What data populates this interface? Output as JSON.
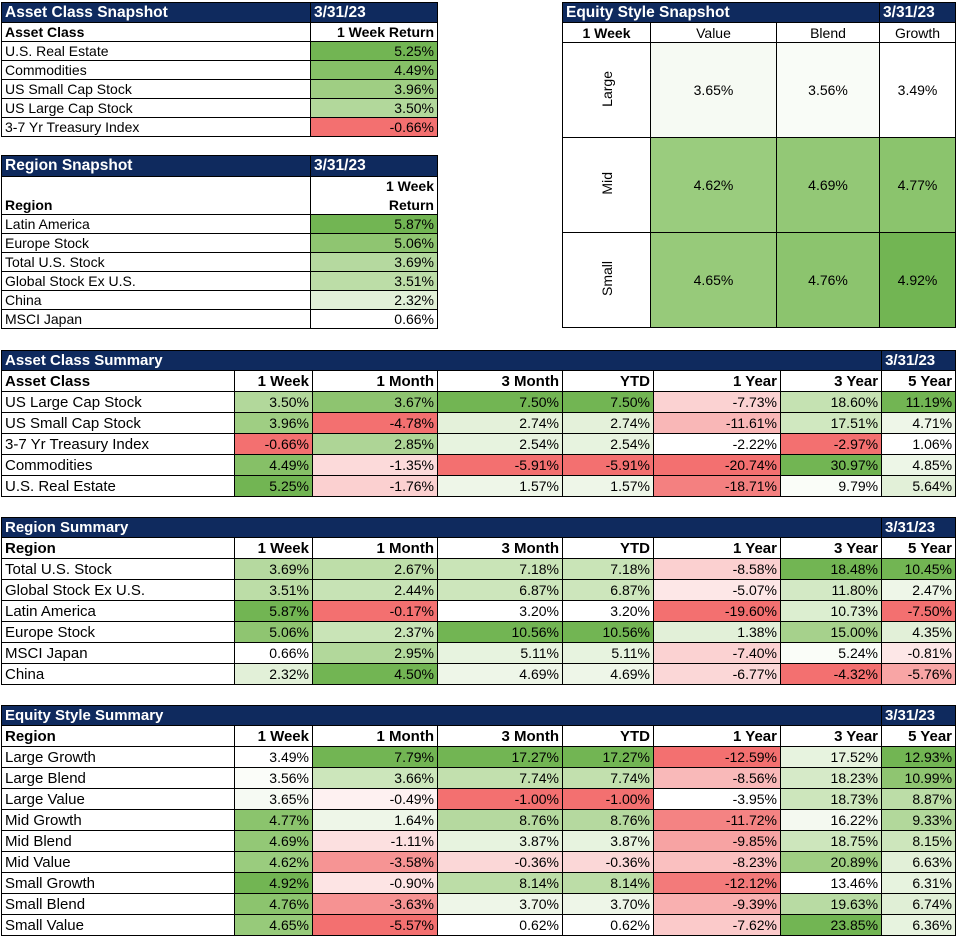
{
  "asset_snapshot": {
    "title": "Asset Class Snapshot",
    "date": "3/31/23",
    "col_label": "Asset Class",
    "col_value": "1 Week Return",
    "rows": [
      {
        "name": "U.S. Real Estate",
        "value": "5.25%",
        "bg": "#72b553"
      },
      {
        "name": "Commodities",
        "value": "4.49%",
        "bg": "#86c067"
      },
      {
        "name": "US Small Cap Stock",
        "value": "3.96%",
        "bg": "#9fce83"
      },
      {
        "name": "US Large Cap Stock",
        "value": "3.50%",
        "bg": "#b2d89b"
      },
      {
        "name": "3-7 Yr Treasury Index",
        "value": "-0.66%",
        "bg": "#f37070"
      }
    ]
  },
  "region_snapshot": {
    "title": "Region Snapshot",
    "date": "3/31/23",
    "col_label": "Region",
    "col_value_1": "1 Week",
    "col_value_2": "Return",
    "rows": [
      {
        "name": "Latin America",
        "value": "5.87%",
        "bg": "#72b553"
      },
      {
        "name": "Europe Stock",
        "value": "5.06%",
        "bg": "#8fc571"
      },
      {
        "name": "Total U.S. Stock",
        "value": "3.69%",
        "bg": "#b5d99f"
      },
      {
        "name": "Global Stock Ex U.S.",
        "value": "3.51%",
        "bg": "#bcdda7"
      },
      {
        "name": "China",
        "value": "2.32%",
        "bg": "#e2f0d8"
      },
      {
        "name": "MSCI Japan",
        "value": "0.66%",
        "bg": "#ffffff"
      }
    ]
  },
  "style_snapshot": {
    "title": "Equity Style Snapshot",
    "date": "3/31/23",
    "corner": "1 Week",
    "cols": [
      "Value",
      "Blend",
      "Growth"
    ],
    "rows": [
      {
        "name": "Large",
        "cells": [
          {
            "v": "3.65%",
            "bg": "#f6faf3"
          },
          {
            "v": "3.56%",
            "bg": "#f9fcf7"
          },
          {
            "v": "3.49%",
            "bg": "#ffffff"
          }
        ]
      },
      {
        "name": "Mid",
        "cells": [
          {
            "v": "4.62%",
            "bg": "#9acc7e"
          },
          {
            "v": "4.69%",
            "bg": "#93c876"
          },
          {
            "v": "4.77%",
            "bg": "#8bc46d"
          }
        ]
      },
      {
        "name": "Small",
        "cells": [
          {
            "v": "4.65%",
            "bg": "#97ca7a"
          },
          {
            "v": "4.76%",
            "bg": "#8cc46e"
          },
          {
            "v": "4.92%",
            "bg": "#72b553"
          }
        ]
      }
    ]
  },
  "asset_summary": {
    "title": "Asset Class Summary",
    "date": "3/31/23",
    "headers": [
      "Asset Class",
      "1 Week",
      "1 Month",
      "3 Month",
      "YTD",
      "1 Year",
      "3 Year",
      "5 Year"
    ],
    "rows": [
      {
        "name": "US Large Cap Stock",
        "cells": [
          {
            "v": "3.50%",
            "bg": "#b2d89b"
          },
          {
            "v": "3.67%",
            "bg": "#8ec470"
          },
          {
            "v": "7.50%",
            "bg": "#72b553"
          },
          {
            "v": "7.50%",
            "bg": "#72b553"
          },
          {
            "v": "-7.73%",
            "bg": "#fbd2d2"
          },
          {
            "v": "18.60%",
            "bg": "#c5e2b2"
          },
          {
            "v": "11.19%",
            "bg": "#72b553"
          }
        ]
      },
      {
        "name": "US Small Cap Stock",
        "cells": [
          {
            "v": "3.96%",
            "bg": "#9fce83"
          },
          {
            "v": "-4.78%",
            "bg": "#f37070"
          },
          {
            "v": "2.74%",
            "bg": "#e4f1da"
          },
          {
            "v": "2.74%",
            "bg": "#e4f1da"
          },
          {
            "v": "-11.61%",
            "bg": "#f9b7b7"
          },
          {
            "v": "17.51%",
            "bg": "#d0e8c0"
          },
          {
            "v": "4.71%",
            "bg": "#eef6e8"
          }
        ]
      },
      {
        "name": "3-7 Yr Treasury Index",
        "cells": [
          {
            "v": "-0.66%",
            "bg": "#f37070"
          },
          {
            "v": "2.85%",
            "bg": "#aed596"
          },
          {
            "v": "2.54%",
            "bg": "#e7f3df"
          },
          {
            "v": "2.54%",
            "bg": "#e7f3df"
          },
          {
            "v": "-2.22%",
            "bg": "#ffffff"
          },
          {
            "v": "-2.97%",
            "bg": "#f37070"
          },
          {
            "v": "1.06%",
            "bg": "#ffffff"
          }
        ]
      },
      {
        "name": "Commodities",
        "cells": [
          {
            "v": "4.49%",
            "bg": "#86c067"
          },
          {
            "v": "-1.35%",
            "bg": "#fcdada"
          },
          {
            "v": "-5.91%",
            "bg": "#f37070"
          },
          {
            "v": "-5.91%",
            "bg": "#f37070"
          },
          {
            "v": "-20.74%",
            "bg": "#f37070"
          },
          {
            "v": "30.97%",
            "bg": "#72b553"
          },
          {
            "v": "4.85%",
            "bg": "#edf6e7"
          }
        ]
      },
      {
        "name": "U.S. Real Estate",
        "cells": [
          {
            "v": "5.25%",
            "bg": "#72b553"
          },
          {
            "v": "-1.76%",
            "bg": "#fbd0d0"
          },
          {
            "v": "1.57%",
            "bg": "#eef6e8"
          },
          {
            "v": "1.57%",
            "bg": "#eef6e8"
          },
          {
            "v": "-18.71%",
            "bg": "#f48080"
          },
          {
            "v": "9.79%",
            "bg": "#fafdf8"
          },
          {
            "v": "5.64%",
            "bg": "#e2f0d8"
          }
        ]
      }
    ]
  },
  "region_summary": {
    "title": "Region Summary",
    "date": "3/31/23",
    "headers": [
      "Region",
      "1 Week",
      "1 Month",
      "3 Month",
      "YTD",
      "1 Year",
      "3 Year",
      "5 Year"
    ],
    "rows": [
      {
        "name": "Total U.S. Stock",
        "cells": [
          {
            "v": "3.69%",
            "bg": "#b5d99f"
          },
          {
            "v": "2.67%",
            "bg": "#bedea9"
          },
          {
            "v": "7.18%",
            "bg": "#c9e4b7"
          },
          {
            "v": "7.18%",
            "bg": "#c9e4b7"
          },
          {
            "v": "-8.58%",
            "bg": "#fbd0d0"
          },
          {
            "v": "18.48%",
            "bg": "#72b553"
          },
          {
            "v": "10.45%",
            "bg": "#72b553"
          }
        ]
      },
      {
        "name": "Global Stock Ex U.S.",
        "cells": [
          {
            "v": "3.51%",
            "bg": "#bcdda7"
          },
          {
            "v": "2.44%",
            "bg": "#c7e3b5"
          },
          {
            "v": "6.87%",
            "bg": "#cde6bc"
          },
          {
            "v": "6.87%",
            "bg": "#cde6bc"
          },
          {
            "v": "-5.07%",
            "bg": "#fde7e7"
          },
          {
            "v": "11.80%",
            "bg": "#d3e9c5"
          },
          {
            "v": "2.47%",
            "bg": "#eef6e8"
          }
        ]
      },
      {
        "name": "Latin America",
        "cells": [
          {
            "v": "5.87%",
            "bg": "#72b553"
          },
          {
            "v": "-0.17%",
            "bg": "#f37070"
          },
          {
            "v": "3.20%",
            "bg": "#ffffff"
          },
          {
            "v": "3.20%",
            "bg": "#ffffff"
          },
          {
            "v": "-19.60%",
            "bg": "#f37070"
          },
          {
            "v": "10.73%",
            "bg": "#dceed0"
          },
          {
            "v": "-7.50%",
            "bg": "#f37070"
          }
        ]
      },
      {
        "name": "Europe Stock",
        "cells": [
          {
            "v": "5.06%",
            "bg": "#8fc571"
          },
          {
            "v": "2.37%",
            "bg": "#c9e4b7"
          },
          {
            "v": "10.56%",
            "bg": "#72b553"
          },
          {
            "v": "10.56%",
            "bg": "#72b553"
          },
          {
            "v": "1.38%",
            "bg": "#e2f0d8"
          },
          {
            "v": "15.00%",
            "bg": "#a6d18c"
          },
          {
            "v": "4.35%",
            "bg": "#e2f0d8"
          }
        ]
      },
      {
        "name": "MSCI Japan",
        "cells": [
          {
            "v": "0.66%",
            "bg": "#ffffff"
          },
          {
            "v": "2.95%",
            "bg": "#b2d89b"
          },
          {
            "v": "5.11%",
            "bg": "#e7f3df"
          },
          {
            "v": "5.11%",
            "bg": "#e7f3df"
          },
          {
            "v": "-7.40%",
            "bg": "#fbd2d2"
          },
          {
            "v": "5.24%",
            "bg": "#fafdf8"
          },
          {
            "v": "-0.81%",
            "bg": "#fde7e7"
          }
        ]
      },
      {
        "name": "China",
        "cells": [
          {
            "v": "2.32%",
            "bg": "#e2f0d8"
          },
          {
            "v": "4.50%",
            "bg": "#72b553"
          },
          {
            "v": "4.69%",
            "bg": "#eef6e8"
          },
          {
            "v": "4.69%",
            "bg": "#eef6e8"
          },
          {
            "v": "-6.77%",
            "bg": "#fbd7d7"
          },
          {
            "v": "-4.32%",
            "bg": "#f37070"
          },
          {
            "v": "-5.76%",
            "bg": "#f8a5a5"
          }
        ]
      }
    ]
  },
  "style_summary": {
    "title": "Equity Style Summary",
    "date": "3/31/23",
    "headers": [
      "Region",
      "1 Week",
      "1 Month",
      "3 Month",
      "YTD",
      "1 Year",
      "3 Year",
      "5 Year"
    ],
    "rows": [
      {
        "name": "Large Growth",
        "cells": [
          {
            "v": "3.49%",
            "bg": "#ffffff"
          },
          {
            "v": "7.79%",
            "bg": "#72b553"
          },
          {
            "v": "17.27%",
            "bg": "#72b553"
          },
          {
            "v": "17.27%",
            "bg": "#72b553"
          },
          {
            "v": "-12.59%",
            "bg": "#f37070"
          },
          {
            "v": "17.52%",
            "bg": "#e7f3df"
          },
          {
            "v": "12.93%",
            "bg": "#72b553"
          }
        ]
      },
      {
        "name": "Large Blend",
        "cells": [
          {
            "v": "3.56%",
            "bg": "#fbfdf9"
          },
          {
            "v": "3.66%",
            "bg": "#cce6bb"
          },
          {
            "v": "7.74%",
            "bg": "#c2e0ae"
          },
          {
            "v": "7.74%",
            "bg": "#c2e0ae"
          },
          {
            "v": "-8.56%",
            "bg": "#f9b9b9"
          },
          {
            "v": "18.23%",
            "bg": "#d6eac8"
          },
          {
            "v": "10.99%",
            "bg": "#8fc571"
          }
        ]
      },
      {
        "name": "Large Value",
        "cells": [
          {
            "v": "3.65%",
            "bg": "#f6faf3"
          },
          {
            "v": "-0.49%",
            "bg": "#fef1f1"
          },
          {
            "v": "-1.00%",
            "bg": "#f37070"
          },
          {
            "v": "-1.00%",
            "bg": "#f37070"
          },
          {
            "v": "-3.95%",
            "bg": "#ffffff"
          },
          {
            "v": "18.73%",
            "bg": "#cde6bc"
          },
          {
            "v": "8.87%",
            "bg": "#bcdda7"
          }
        ]
      },
      {
        "name": "Mid Growth",
        "cells": [
          {
            "v": "4.77%",
            "bg": "#8bc46d"
          },
          {
            "v": "1.64%",
            "bg": "#eef6e8"
          },
          {
            "v": "8.76%",
            "bg": "#b5d99f"
          },
          {
            "v": "8.76%",
            "bg": "#b5d99f"
          },
          {
            "v": "-11.72%",
            "bg": "#f48383"
          },
          {
            "v": "16.22%",
            "bg": "#f4f9f0"
          },
          {
            "v": "9.33%",
            "bg": "#b2d89b"
          }
        ]
      },
      {
        "name": "Mid Blend",
        "cells": [
          {
            "v": "4.69%",
            "bg": "#93c876"
          },
          {
            "v": "-1.11%",
            "bg": "#fce0e0"
          },
          {
            "v": "3.87%",
            "bg": "#e7f3df"
          },
          {
            "v": "3.87%",
            "bg": "#e7f3df"
          },
          {
            "v": "-9.85%",
            "bg": "#f7a3a3"
          },
          {
            "v": "18.75%",
            "bg": "#cde6bc"
          },
          {
            "v": "8.15%",
            "bg": "#cde6bc"
          }
        ]
      },
      {
        "name": "Mid Value",
        "cells": [
          {
            "v": "4.62%",
            "bg": "#9acc7e"
          },
          {
            "v": "-3.58%",
            "bg": "#f69494"
          },
          {
            "v": "-0.36%",
            "bg": "#fbd7d7"
          },
          {
            "v": "-0.36%",
            "bg": "#fbd7d7"
          },
          {
            "v": "-8.23%",
            "bg": "#fac0c0"
          },
          {
            "v": "20.89%",
            "bg": "#9fce83"
          },
          {
            "v": "6.63%",
            "bg": "#e2f0d8"
          }
        ]
      },
      {
        "name": "Small Growth",
        "cells": [
          {
            "v": "4.92%",
            "bg": "#72b553"
          },
          {
            "v": "-0.90%",
            "bg": "#fde4e4"
          },
          {
            "v": "8.14%",
            "bg": "#bcdda7"
          },
          {
            "v": "8.14%",
            "bg": "#bcdda7"
          },
          {
            "v": "-12.12%",
            "bg": "#f37a7a"
          },
          {
            "v": "13.46%",
            "bg": "#ffffff"
          },
          {
            "v": "6.31%",
            "bg": "#e7f3df"
          }
        ]
      },
      {
        "name": "Small Blend",
        "cells": [
          {
            "v": "4.76%",
            "bg": "#8cc46e"
          },
          {
            "v": "-3.63%",
            "bg": "#f69292"
          },
          {
            "v": "3.70%",
            "bg": "#eef6e8"
          },
          {
            "v": "3.70%",
            "bg": "#eef6e8"
          },
          {
            "v": "-9.39%",
            "bg": "#f9b0b0"
          },
          {
            "v": "19.63%",
            "bg": "#b8dba3"
          },
          {
            "v": "6.74%",
            "bg": "#e0efd6"
          }
        ]
      },
      {
        "name": "Small Value",
        "cells": [
          {
            "v": "4.65%",
            "bg": "#97ca7a"
          },
          {
            "v": "-5.57%",
            "bg": "#f37070"
          },
          {
            "v": "0.62%",
            "bg": "#ffffff"
          },
          {
            "v": "0.62%",
            "bg": "#ffffff"
          },
          {
            "v": "-7.62%",
            "bg": "#fbcaca"
          },
          {
            "v": "23.85%",
            "bg": "#72b553"
          },
          {
            "v": "6.36%",
            "bg": "#e7f3df"
          }
        ]
      }
    ]
  }
}
